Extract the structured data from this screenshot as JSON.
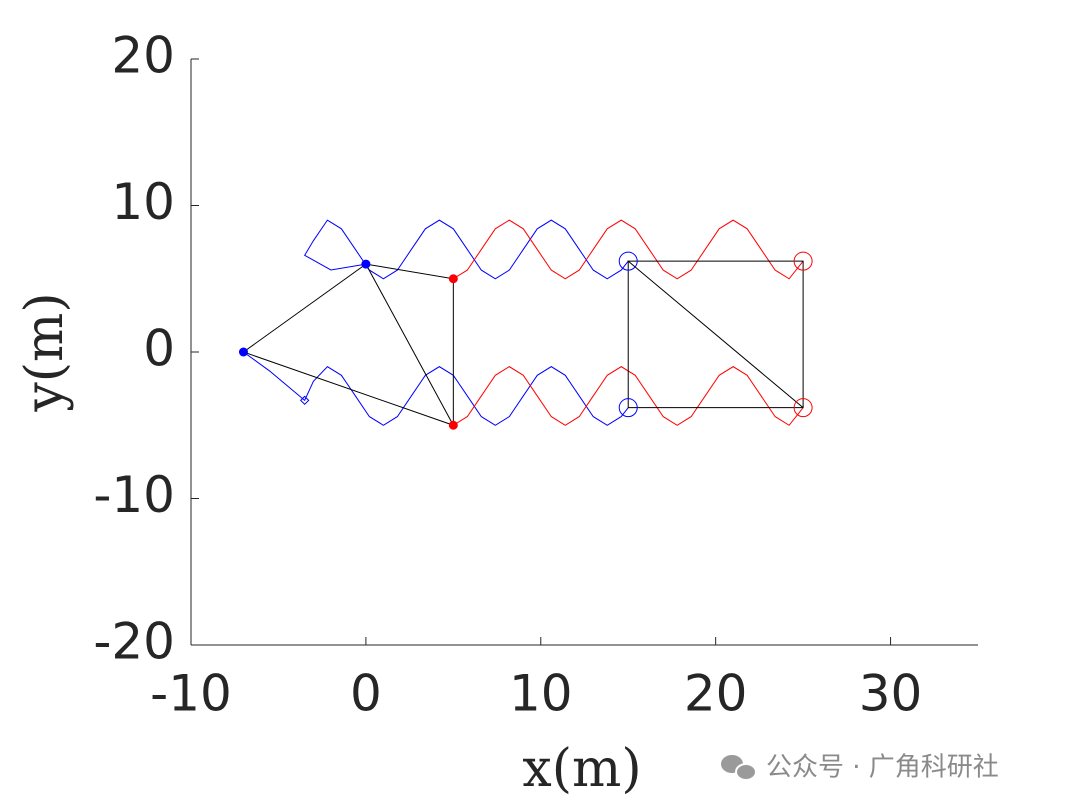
{
  "chart_data": {
    "type": "line",
    "xlabel": "x(m)",
    "ylabel": "y(m)",
    "xlim": [
      -10,
      35
    ],
    "ylim": [
      -20,
      20
    ],
    "xticks": [
      -10,
      0,
      10,
      20,
      30
    ],
    "yticks": [
      -20,
      -10,
      0,
      10,
      20
    ],
    "series": [
      {
        "color": "#0000ff",
        "x": [
          0,
          -2,
          -3.5,
          -3,
          -2.2,
          -1.4,
          -0.6,
          0.2,
          1.0,
          1.8,
          2.6,
          3.4,
          4.2,
          5.0,
          5.8,
          6.6,
          7.4,
          8.2,
          9.0,
          9.8,
          10.6,
          11.4,
          12.2,
          13.0,
          13.8,
          14.6,
          15
        ],
        "values": [
          6,
          5.6,
          6.6,
          7.6,
          9,
          8.41,
          7,
          5.59,
          5,
          5.59,
          7,
          8.41,
          9,
          8.41,
          7,
          5.59,
          5,
          5.59,
          7,
          8.41,
          9,
          8.41,
          7,
          5.59,
          5,
          5.59,
          6.2
        ]
      },
      {
        "color": "#0000ff",
        "x": [
          -7,
          -5.5,
          -3.5,
          -3,
          -2.2,
          -1.4,
          -0.6,
          0.2,
          1.0,
          1.8,
          2.6,
          3.4,
          4.2,
          5.0,
          5.8,
          6.6,
          7.4,
          8.2,
          9.0,
          9.8,
          10.6,
          11.4,
          12.2,
          13.0,
          13.8,
          14.6,
          15
        ],
        "values": [
          0,
          -1.3,
          -3.3,
          -2,
          -1,
          -1.59,
          -3,
          -4.41,
          -5,
          -4.41,
          -3,
          -1.59,
          -1,
          -1.59,
          -3,
          -4.41,
          -5,
          -4.41,
          -3,
          -1.59,
          -1,
          -1.59,
          -3,
          -4.41,
          -5,
          -4.41,
          -3.8
        ]
      },
      {
        "color": "#ff0000",
        "x": [
          5.0,
          5.8,
          6.6,
          7.4,
          8.2,
          9.0,
          9.8,
          10.6,
          11.4,
          12.2,
          13.0,
          13.8,
          14.6,
          15.4,
          16.2,
          17.0,
          17.8,
          18.6,
          19.4,
          20.2,
          21.0,
          21.8,
          22.6,
          23.4,
          24.2,
          25.0
        ],
        "values": [
          5,
          5.59,
          7,
          8.41,
          9,
          8.41,
          7,
          5.59,
          5,
          5.59,
          7,
          8.41,
          9,
          8.41,
          7,
          5.59,
          5,
          5.59,
          7,
          8.41,
          9,
          8.41,
          7,
          5.59,
          5,
          6.2
        ]
      },
      {
        "color": "#ff0000",
        "x": [
          5.0,
          5.8,
          6.6,
          7.4,
          8.2,
          9.0,
          9.8,
          10.6,
          11.4,
          12.2,
          13.0,
          13.8,
          14.6,
          15.4,
          16.2,
          17.0,
          17.8,
          18.6,
          19.4,
          20.2,
          21.0,
          21.8,
          22.6,
          23.4,
          24.2,
          25.0
        ],
        "values": [
          -5,
          -4.41,
          -3,
          -1.59,
          -1,
          -1.59,
          -3,
          -4.41,
          -5,
          -4.41,
          -3,
          -1.59,
          -1,
          -1.59,
          -3,
          -4.41,
          -5,
          -4.41,
          -3,
          -1.59,
          -1,
          -1.59,
          -3,
          -4.41,
          -5,
          -3.8
        ]
      },
      {
        "color": "#000000",
        "x": [
          -7,
          0,
          5,
          5,
          -7,
          null,
          0,
          5,
          null,
          15,
          25,
          25,
          15,
          15,
          25
        ],
        "values": [
          0,
          6,
          5,
          -5,
          0,
          null,
          6,
          -5,
          null,
          6.2,
          6.2,
          -3.8,
          -3.8,
          6.2,
          -3.8
        ]
      }
    ],
    "markers": [
      {
        "x": -7,
        "y": 0,
        "color": "#0000ff",
        "shape": "dot"
      },
      {
        "x": 0,
        "y": 6,
        "color": "#0000ff",
        "shape": "dot"
      },
      {
        "x": 5,
        "y": 5,
        "color": "#ff0000",
        "shape": "dot"
      },
      {
        "x": 5,
        "y": -5,
        "color": "#ff0000",
        "shape": "dot"
      },
      {
        "x": -3.5,
        "y": -3.3,
        "color": "#0000ff",
        "shape": "diamond"
      },
      {
        "x": 15,
        "y": 6.2,
        "color": "#0000ff",
        "shape": "circle"
      },
      {
        "x": 15,
        "y": -3.8,
        "color": "#0000ff",
        "shape": "circle"
      },
      {
        "x": 25,
        "y": 6.2,
        "color": "#ff0000",
        "shape": "circle"
      },
      {
        "x": 25,
        "y": -3.8,
        "color": "#ff0000",
        "shape": "circle"
      }
    ]
  },
  "watermark": "公众号 · 广角科研社"
}
